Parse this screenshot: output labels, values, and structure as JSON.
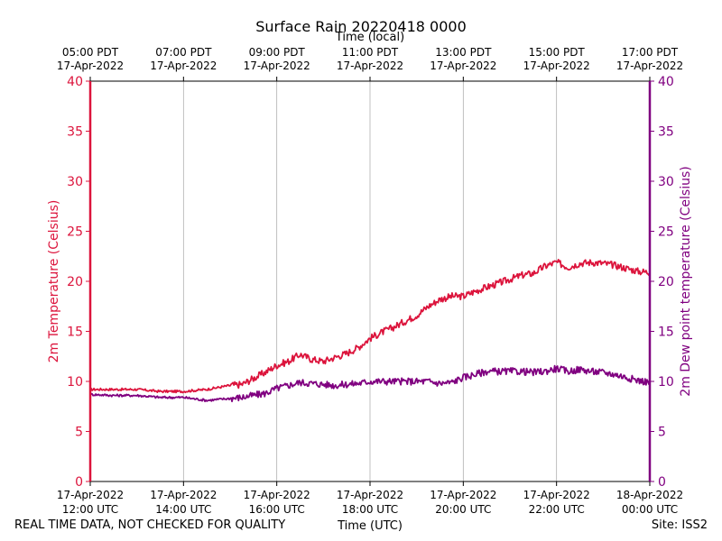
{
  "chart_data": {
    "type": "line",
    "title": "Surface Rain 20220418 0000",
    "footer_note": "REAL TIME DATA, NOT CHECKED FOR QUALITY",
    "site": "Site: ISS2",
    "xlabel": "Time (UTC)",
    "xlabel_top": "Time (local)",
    "ylabel_left": "2m Temperature (Celsius)",
    "ylabel_right": "2m Dew point temperature (Celsius)",
    "ylim": [
      0,
      40
    ],
    "yticks": [
      0,
      5,
      10,
      15,
      20,
      25,
      30,
      35,
      40
    ],
    "xlim_hours": [
      0,
      12
    ],
    "xticks_bottom": [
      {
        "hour": 0,
        "date": "17-Apr-2022",
        "time": "12:00 UTC"
      },
      {
        "hour": 2,
        "date": "17-Apr-2022",
        "time": "14:00 UTC"
      },
      {
        "hour": 4,
        "date": "17-Apr-2022",
        "time": "16:00 UTC"
      },
      {
        "hour": 6,
        "date": "17-Apr-2022",
        "time": "18:00 UTC"
      },
      {
        "hour": 8,
        "date": "17-Apr-2022",
        "time": "20:00 UTC"
      },
      {
        "hour": 10,
        "date": "17-Apr-2022",
        "time": "22:00 UTC"
      },
      {
        "hour": 12,
        "date": "18-Apr-2022",
        "time": "00:00 UTC"
      }
    ],
    "xticks_top": [
      {
        "hour": 0,
        "time": "05:00 PDT",
        "date": "17-Apr-2022"
      },
      {
        "hour": 2,
        "time": "07:00 PDT",
        "date": "17-Apr-2022"
      },
      {
        "hour": 4,
        "time": "09:00 PDT",
        "date": "17-Apr-2022"
      },
      {
        "hour": 6,
        "time": "11:00 PDT",
        "date": "17-Apr-2022"
      },
      {
        "hour": 8,
        "time": "13:00 PDT",
        "date": "17-Apr-2022"
      },
      {
        "hour": 10,
        "time": "15:00 PDT",
        "date": "17-Apr-2022"
      },
      {
        "hour": 12,
        "time": "17:00 PDT",
        "date": "17-Apr-2022"
      }
    ],
    "grid": "vertical",
    "series": [
      {
        "name": "2m Temperature",
        "color": "#dc143c",
        "x": [
          0,
          0.5,
          1,
          1.5,
          2,
          2.5,
          3,
          3.25,
          3.5,
          3.75,
          4,
          4.25,
          4.5,
          4.75,
          5,
          5.25,
          5.5,
          5.75,
          6,
          6.25,
          6.5,
          6.75,
          7,
          7.25,
          7.5,
          7.75,
          8,
          8.25,
          8.5,
          8.75,
          9,
          9.25,
          9.5,
          9.75,
          10,
          10.25,
          10.5,
          10.75,
          11,
          11.25,
          11.5,
          11.75,
          12
        ],
        "values": [
          9.2,
          9.2,
          9.2,
          9.0,
          9.0,
          9.2,
          9.6,
          9.7,
          10.3,
          10.9,
          11.6,
          12.0,
          12.7,
          12.2,
          12.0,
          12.4,
          12.8,
          13.4,
          14.3,
          14.9,
          15.4,
          16.0,
          16.6,
          17.5,
          18.2,
          18.5,
          18.5,
          19.0,
          19.4,
          19.8,
          20.2,
          20.6,
          20.8,
          21.5,
          21.9,
          21.4,
          21.8,
          21.9,
          21.8,
          21.6,
          21.3,
          21.0,
          20.9
        ]
      },
      {
        "name": "2m Dew point temperature",
        "color": "#800080",
        "x": [
          0,
          0.5,
          1,
          1.5,
          2,
          2.5,
          3,
          3.25,
          3.5,
          3.75,
          4,
          4.25,
          4.5,
          4.75,
          5,
          5.25,
          5.5,
          5.75,
          6,
          6.25,
          6.5,
          6.75,
          7,
          7.25,
          7.5,
          7.75,
          8,
          8.25,
          8.5,
          8.75,
          9,
          9.25,
          9.5,
          9.75,
          10,
          10.25,
          10.5,
          10.75,
          11,
          11.25,
          11.5,
          11.75,
          12
        ],
        "values": [
          8.7,
          8.6,
          8.6,
          8.4,
          8.4,
          8.1,
          8.3,
          8.4,
          8.6,
          8.8,
          9.3,
          9.6,
          9.9,
          9.8,
          9.7,
          9.6,
          9.7,
          9.8,
          10.0,
          10.0,
          10.0,
          10.0,
          10.0,
          10.0,
          9.8,
          9.9,
          10.4,
          10.7,
          11.0,
          11.0,
          11.0,
          11.0,
          10.9,
          11.0,
          11.3,
          11.0,
          11.2,
          11.0,
          10.9,
          10.7,
          10.4,
          10.1,
          9.9
        ]
      }
    ]
  }
}
